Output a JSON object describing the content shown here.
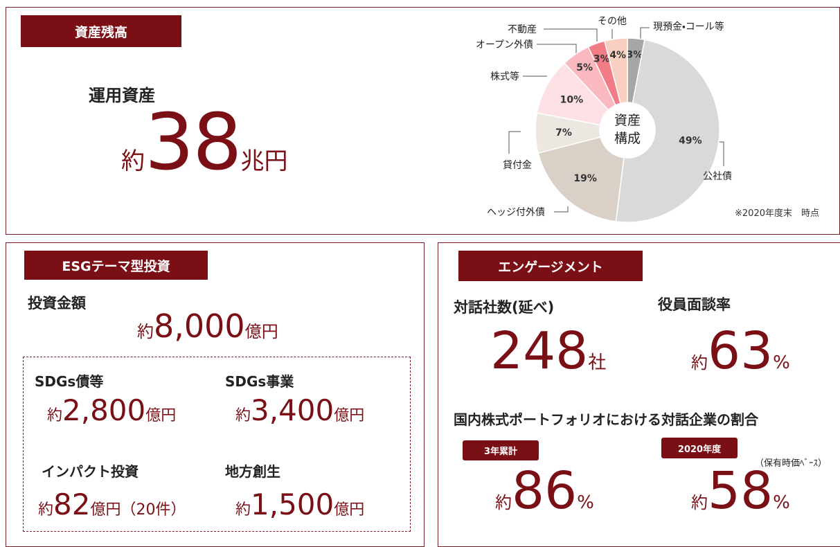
{
  "asset_panel": {
    "heading": "資産残高",
    "label": "運用資産",
    "amount": {
      "prefix": "約",
      "number": "38",
      "unit": "兆円"
    }
  },
  "chart_data": {
    "type": "donut",
    "categories": [
      "現預金・コール等",
      "公社債",
      "ヘッジ付外債",
      "貸付金",
      "株式等",
      "オープン外債",
      "不動産",
      "その他"
    ],
    "values": [
      3,
      49,
      19,
      7,
      10,
      5,
      3,
      4
    ],
    "value_labels": [
      "3%",
      "49%",
      "19%",
      "7%",
      "10%",
      "5%",
      "3%",
      "4%"
    ],
    "colors": [
      "#a6a6a6",
      "#d9d9d9",
      "#d9d1c7",
      "#ece8e1",
      "#fde0e4",
      "#f9b9bf",
      "#f27c86",
      "#f8d0c2"
    ],
    "center_label": [
      "資産",
      "構成"
    ],
    "note": "※2020年度末　時点"
  },
  "esg_panel": {
    "heading": "ESGテーマ型投資",
    "label": "投資金額",
    "amount": {
      "prefix": "約",
      "number": "8,000",
      "unit": "億円"
    },
    "items": [
      {
        "label": "SDGs債等",
        "prefix": "約",
        "number": "2,800",
        "unit": "億円"
      },
      {
        "label": "SDGs事業",
        "prefix": "約",
        "number": "3,400",
        "unit": "億円"
      },
      {
        "label": "インパクト投資",
        "prefix": "約",
        "number": "82",
        "unit": "億円（20件）"
      },
      {
        "label": "地方創生",
        "prefix": "約",
        "number": "1,500",
        "unit": "億円"
      }
    ]
  },
  "engagement_panel": {
    "heading": "エンゲージメント",
    "dialogue": {
      "label": "対話社数(延べ)",
      "number": "248",
      "unit": "社"
    },
    "meeting": {
      "label": "役員面談率",
      "prefix": "約",
      "number": "63",
      "unit": "%"
    },
    "ratio_title": "国内株式ポートフォリオにおける対話企業の割合",
    "ratio_3y": {
      "badge": "3年累計",
      "prefix": "約",
      "number": "86",
      "unit": "%"
    },
    "ratio_2020": {
      "badge": "2020年度",
      "note": "（保有時価ﾍﾞｰｽ）",
      "prefix": "約",
      "number": "58",
      "unit": "%"
    }
  }
}
